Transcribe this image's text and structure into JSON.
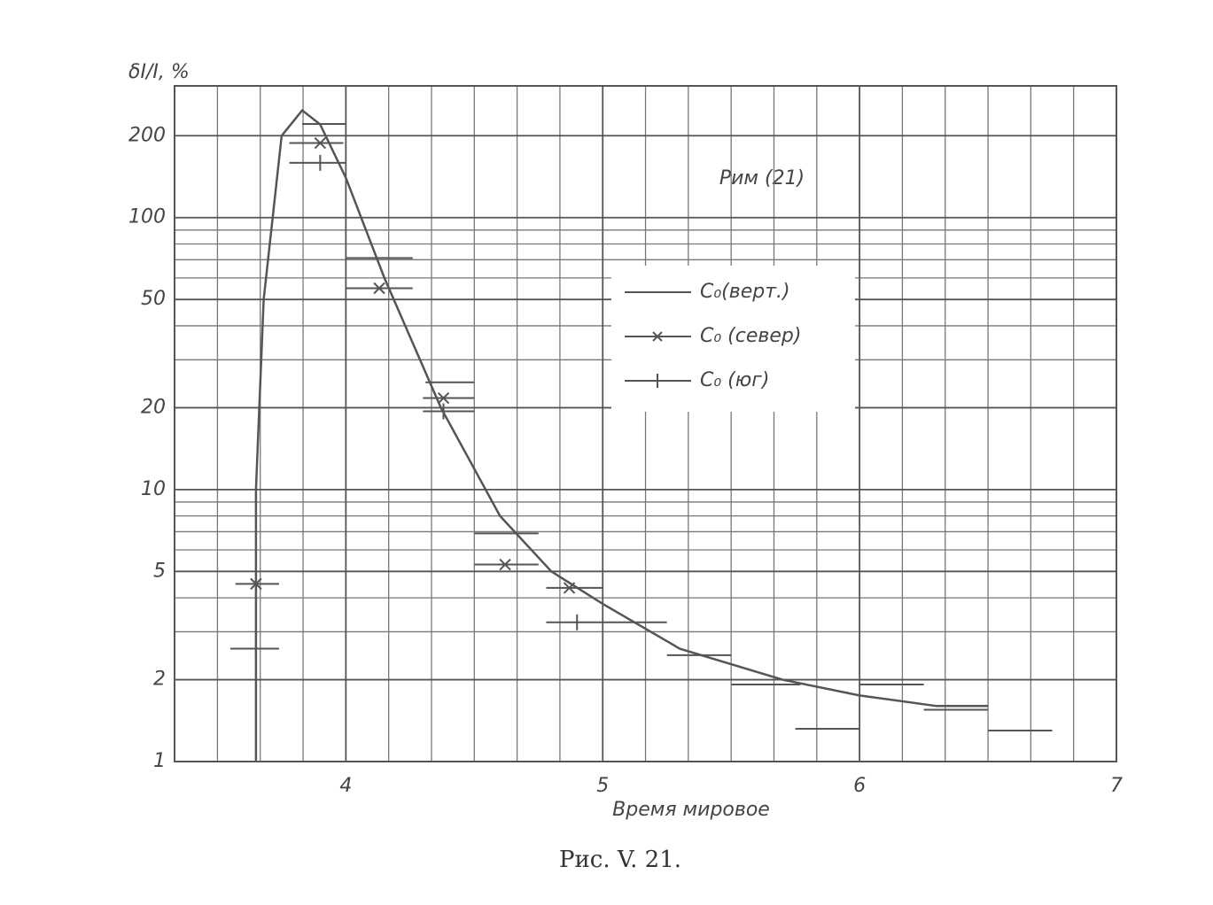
{
  "chart_data": {
    "type": "line",
    "log_y": true,
    "grid": true,
    "y_label": "δI/I, %",
    "x_label": "Время мировое",
    "caption": "Рис. V. 21.",
    "annotation": "Рим (21)",
    "xlim": [
      3.333,
      7
    ],
    "xticks": [
      4,
      5,
      6,
      7
    ],
    "x_minor_divisions": 6,
    "ylim": [
      1,
      305
    ],
    "yticks": [
      1,
      2,
      5,
      10,
      20,
      50,
      100,
      200
    ],
    "y_minor_grid": [
      3,
      4,
      6,
      7,
      8,
      9,
      30,
      40,
      60,
      70,
      80,
      90
    ],
    "legend_position": "center-right",
    "series": [
      {
        "name": "C₀(верт.)",
        "color": "#555555",
        "marker": "none",
        "curve": {
          "x": [
            3.65,
            3.65,
            3.68,
            3.75,
            3.83,
            3.9,
            4.0,
            4.15,
            4.37,
            4.6,
            4.8,
            5.0,
            5.3,
            5.7,
            6.0,
            6.3,
            6.5
          ],
          "values": [
            1,
            10,
            50,
            200,
            248,
            220,
            140,
            60,
            20,
            8,
            5,
            3.8,
            2.6,
            2,
            1.75,
            1.6,
            1.6
          ]
        },
        "x_start": [
          3.83,
          4.0,
          4.31,
          4.5,
          5.25,
          5.5,
          6.0,
          6.25,
          5.75,
          6.5
        ],
        "x_end": [
          4.0,
          4.26,
          4.5,
          4.75,
          5.5,
          5.77,
          6.25,
          6.5,
          6.0,
          6.75
        ],
        "values": [
          221,
          71,
          24.8,
          6.9,
          2.46,
          1.92,
          1.92,
          1.55,
          1.32,
          1.3
        ]
      },
      {
        "name": "C₀ (север)",
        "color": "#555555",
        "marker": "x",
        "x": [
          3.65,
          3.9,
          4.13,
          4.38,
          4.62,
          4.87
        ],
        "x_start": [
          3.57,
          3.78,
          4.0,
          4.3,
          4.5,
          4.78
        ],
        "x_end": [
          3.74,
          3.99,
          4.26,
          4.5,
          4.75,
          5.0
        ],
        "values": [
          4.5,
          188,
          55,
          21.7,
          5.3,
          4.35
        ]
      },
      {
        "name": "C₀ (юг)",
        "color": "#555555",
        "marker": "+",
        "x": [
          3.65,
          3.9,
          4.38,
          4.9
        ],
        "x_start": [
          3.55,
          3.78,
          4.3,
          4.78
        ],
        "x_end": [
          3.74,
          4.0,
          4.5,
          5.25
        ],
        "values": [
          2.6,
          159,
          19.4,
          3.25
        ]
      }
    ]
  }
}
